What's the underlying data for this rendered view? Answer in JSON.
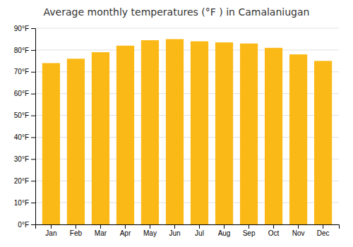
{
  "chart_data": {
    "type": "bar",
    "title": "Average monthly temperatures (°F ) in Camalaniugan",
    "categories": [
      "Jan",
      "Feb",
      "Mar",
      "Apr",
      "May",
      "Jun",
      "Jul",
      "Aug",
      "Sep",
      "Oct",
      "Nov",
      "Dec"
    ],
    "values": [
      74.0,
      76.0,
      79.0,
      82.0,
      84.5,
      85.0,
      84.0,
      83.5,
      83.0,
      81.0,
      78.0,
      75.0
    ],
    "color": "#FBB917",
    "ylim": [
      0,
      90
    ],
    "yticks": [
      {
        "value": 0,
        "label": "0°F"
      },
      {
        "value": 10,
        "label": "10°F"
      },
      {
        "value": 20,
        "label": "20°F"
      },
      {
        "value": 30,
        "label": "30°F"
      },
      {
        "value": 40,
        "label": "40°F"
      },
      {
        "value": 50,
        "label": "50°F"
      },
      {
        "value": 60,
        "label": "60°F"
      },
      {
        "value": 70,
        "label": "70°F"
      },
      {
        "value": 80,
        "label": "80°F"
      },
      {
        "value": 90,
        "label": "90°F"
      }
    ],
    "grid": true
  }
}
